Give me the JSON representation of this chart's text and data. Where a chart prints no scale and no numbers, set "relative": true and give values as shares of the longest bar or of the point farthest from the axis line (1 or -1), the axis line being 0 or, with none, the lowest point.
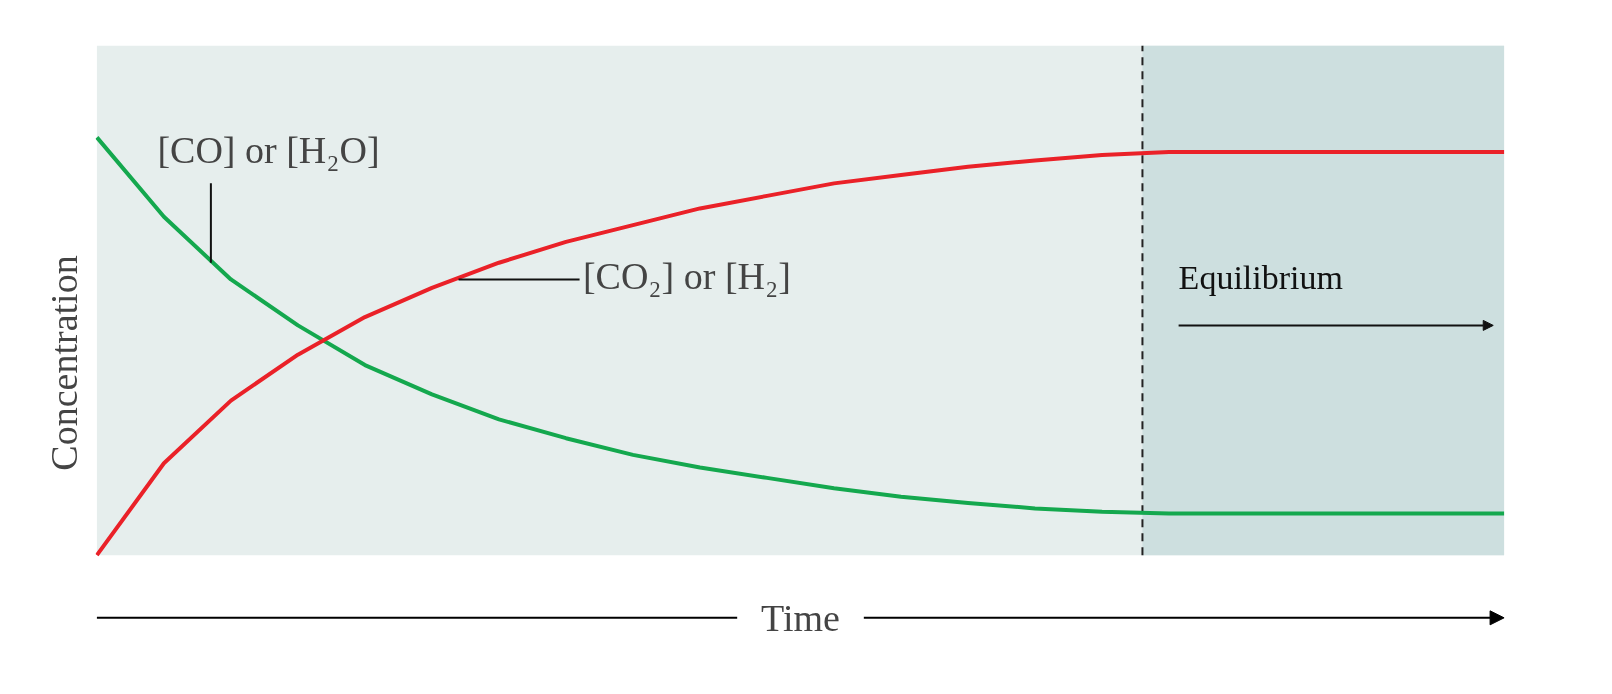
{
  "chart_data": {
    "type": "line",
    "relative": true,
    "xlabel": "Time",
    "ylabel": "Concentration",
    "tick_labels": false,
    "grid": false,
    "line_style": "solid",
    "marker": "none",
    "categories": [
      null,
      null,
      null,
      null,
      null,
      null,
      null,
      null,
      null,
      null,
      null,
      null,
      null,
      null,
      null,
      null,
      null,
      null,
      null,
      null,
      null,
      null
    ],
    "series": [
      {
        "color": "#14a84e",
        "values": [
          1.0,
          0.81,
          0.66,
          0.55,
          0.455,
          0.385,
          0.325,
          0.28,
          0.24,
          0.21,
          0.185,
          0.16,
          0.14,
          0.125,
          0.112,
          0.104,
          0.1,
          0.1,
          0.1,
          0.1,
          0.1,
          0.1
        ]
      },
      {
        "color": "#ea2128",
        "values": [
          0,
          0.22,
          0.37,
          0.48,
          0.57,
          0.64,
          0.7,
          0.75,
          0.79,
          0.83,
          0.86,
          0.89,
          0.91,
          0.93,
          0.945,
          0.958,
          0.965,
          0.965,
          0.965,
          0.965,
          0.965,
          0.965
        ]
      }
    ],
    "annotations": [
      "[CO] or [H₂O]",
      "[CO₂] or [H₂]",
      "Equilibrium"
    ]
  }
}
